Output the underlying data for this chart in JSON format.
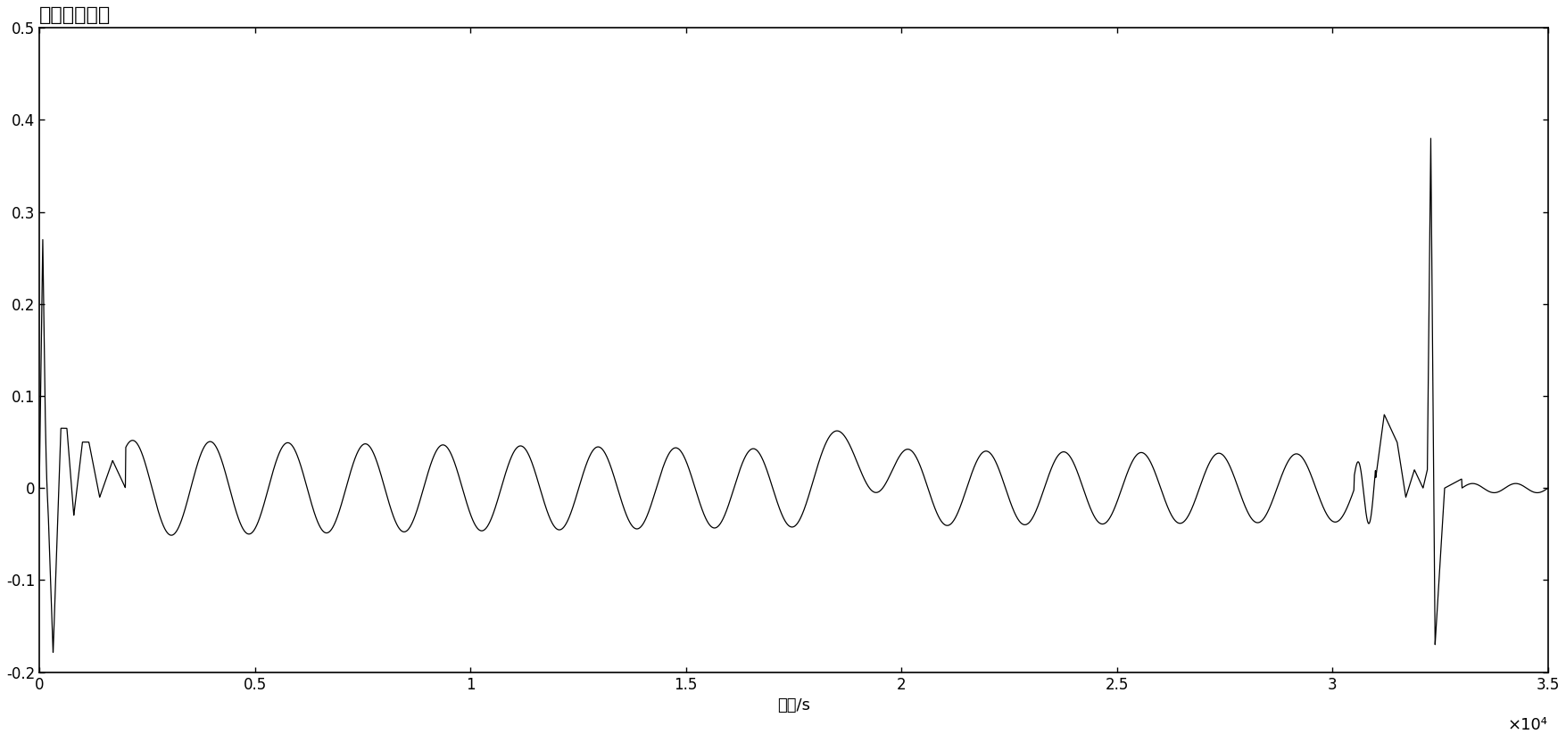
{
  "title": "小波变换模値",
  "xlabel": "时间/s",
  "ylabel": "",
  "xlim": [
    0,
    35000
  ],
  "ylim": [
    -0.2,
    0.5
  ],
  "xticks": [
    0,
    5000,
    10000,
    15000,
    20000,
    25000,
    30000,
    35000
  ],
  "xticklabels": [
    "0",
    "0.5",
    "1",
    "1.5",
    "2",
    "2.5",
    "3",
    "3.5"
  ],
  "yticks": [
    -0.2,
    -0.1,
    0,
    0.1,
    0.2,
    0.3,
    0.4,
    0.5
  ],
  "x10_label": "×10⁴",
  "line_color": "#000000",
  "background_color": "#ffffff",
  "title_fontsize": 16,
  "label_fontsize": 13,
  "tick_fontsize": 12
}
